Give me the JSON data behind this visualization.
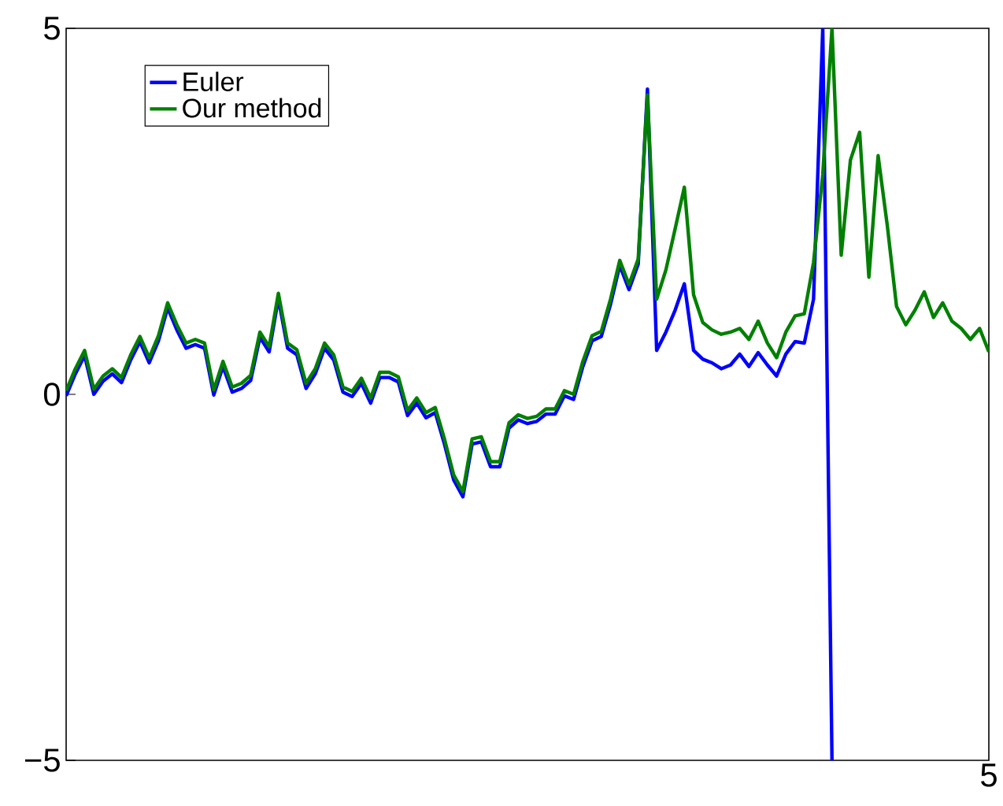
{
  "chart_data": {
    "type": "line",
    "ylim": [
      -5,
      5
    ],
    "yticks": [
      {
        "value": -5,
        "label": "−5"
      },
      {
        "value": 0,
        "label": "0"
      },
      {
        "value": 5,
        "label": "5"
      }
    ],
    "annotations": [
      "5"
    ],
    "grid": false,
    "legend": "top left",
    "marker": "none",
    "line_style": "solid",
    "categories": [
      null,
      null,
      null,
      null,
      null,
      null,
      null,
      null,
      null,
      null,
      null,
      null,
      null,
      null,
      null,
      null,
      null,
      null,
      null,
      null,
      null,
      null,
      null,
      null,
      null,
      null,
      null,
      null,
      null,
      null,
      null,
      null,
      null,
      null,
      null,
      null,
      null,
      null,
      null,
      null,
      null,
      null,
      null,
      null,
      null,
      null,
      null,
      null,
      null,
      null,
      null,
      null,
      null,
      null,
      null,
      null,
      null,
      null,
      null,
      null,
      null,
      null,
      null,
      null,
      null,
      null,
      null,
      null,
      null,
      null,
      null,
      null,
      null,
      null,
      null,
      null,
      null,
      null,
      null,
      null,
      null,
      null,
      null,
      null,
      null,
      null,
      null,
      null,
      null,
      null,
      null,
      null,
      null,
      null,
      null,
      null,
      null,
      null,
      null,
      null,
      null
    ],
    "series": [
      {
        "name": "Euler",
        "color": "#0000ff",
        "values": [
          -0.02,
          0.28,
          0.53,
          0,
          0.18,
          0.28,
          0.16,
          0.47,
          0.72,
          0.43,
          0.73,
          1.18,
          0.88,
          0.63,
          0.68,
          0.63,
          -0.01,
          0.38,
          0.03,
          0.08,
          0.19,
          0.78,
          0.58,
          1.31,
          0.63,
          0.54,
          0.08,
          0.28,
          0.63,
          0.47,
          0.03,
          -0.03,
          0.15,
          -0.12,
          0.23,
          0.23,
          0.17,
          -0.29,
          -0.12,
          -0.32,
          -0.25,
          -0.68,
          -1.17,
          -1.4,
          -0.68,
          -0.65,
          -0.99,
          -0.99,
          -0.46,
          -0.35,
          -0.4,
          -0.37,
          -0.27,
          -0.27,
          -0.02,
          -0.07,
          0.38,
          0.73,
          0.79,
          1.23,
          1.76,
          1.43,
          1.78,
          4.17,
          0.6,
          0.85,
          1.15,
          1.51,
          0.6,
          0.48,
          0.43,
          0.35,
          0.4,
          0.55,
          0.38,
          0.57,
          0.4,
          0.25,
          0.55,
          0.72,
          0.7,
          1.3,
          5,
          -5,
          null,
          null,
          null,
          null,
          null,
          null,
          null,
          null,
          null,
          null,
          null,
          null,
          null,
          null,
          null,
          null,
          null
        ]
      },
      {
        "name": "Our method",
        "color": "#008000",
        "values": [
          0.05,
          0.35,
          0.6,
          0.07,
          0.25,
          0.35,
          0.23,
          0.54,
          0.79,
          0.5,
          0.8,
          1.25,
          0.95,
          0.7,
          0.75,
          0.7,
          0.06,
          0.45,
          0.1,
          0.15,
          0.26,
          0.85,
          0.65,
          1.38,
          0.7,
          0.61,
          0.15,
          0.35,
          0.7,
          0.54,
          0.1,
          0.04,
          0.22,
          -0.05,
          0.3,
          0.3,
          0.24,
          -0.22,
          -0.05,
          -0.25,
          -0.18,
          -0.61,
          -1.1,
          -1.33,
          -0.61,
          -0.58,
          -0.92,
          -0.92,
          -0.39,
          -0.28,
          -0.33,
          -0.3,
          -0.2,
          -0.2,
          0.05,
          0,
          0.45,
          0.8,
          0.86,
          1.3,
          1.83,
          1.5,
          1.85,
          4.09,
          1.3,
          1.7,
          2.26,
          2.83,
          1.36,
          0.98,
          0.88,
          0.82,
          0.85,
          0.9,
          0.75,
          1.0,
          0.7,
          0.5,
          0.85,
          1.07,
          1.1,
          1.8,
          3.0,
          5,
          1.9,
          3.2,
          3.58,
          1.6,
          3.26,
          2.3,
          1.2,
          0.95,
          1.15,
          1.4,
          1.05,
          1.25,
          1.0,
          0.9,
          0.75,
          0.9,
          0.58
        ]
      }
    ]
  }
}
